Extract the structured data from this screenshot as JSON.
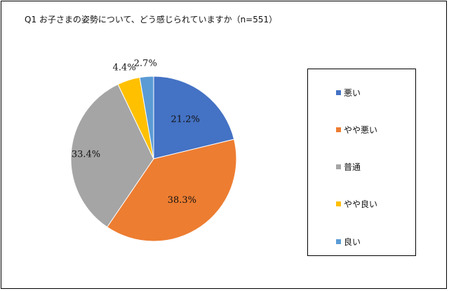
{
  "title": "Q1 お子さまの姿勢について、どう感じられていますか（n=551）",
  "chart_data": {
    "type": "pie",
    "categories": [
      "悪い",
      "やや悪い",
      "普通",
      "やや良い",
      "良い"
    ],
    "values": [
      21.2,
      38.3,
      33.4,
      4.4,
      2.7
    ],
    "value_labels": [
      "21.2%",
      "38.3%",
      "33.4%",
      "4.4%",
      "2.7%"
    ],
    "colors": [
      "#4472C4",
      "#ED7D31",
      "#A5A5A5",
      "#FFC000",
      "#5B9BD5"
    ],
    "start_angle_deg": 0,
    "direction": "clockwise",
    "legend_position": "right"
  }
}
